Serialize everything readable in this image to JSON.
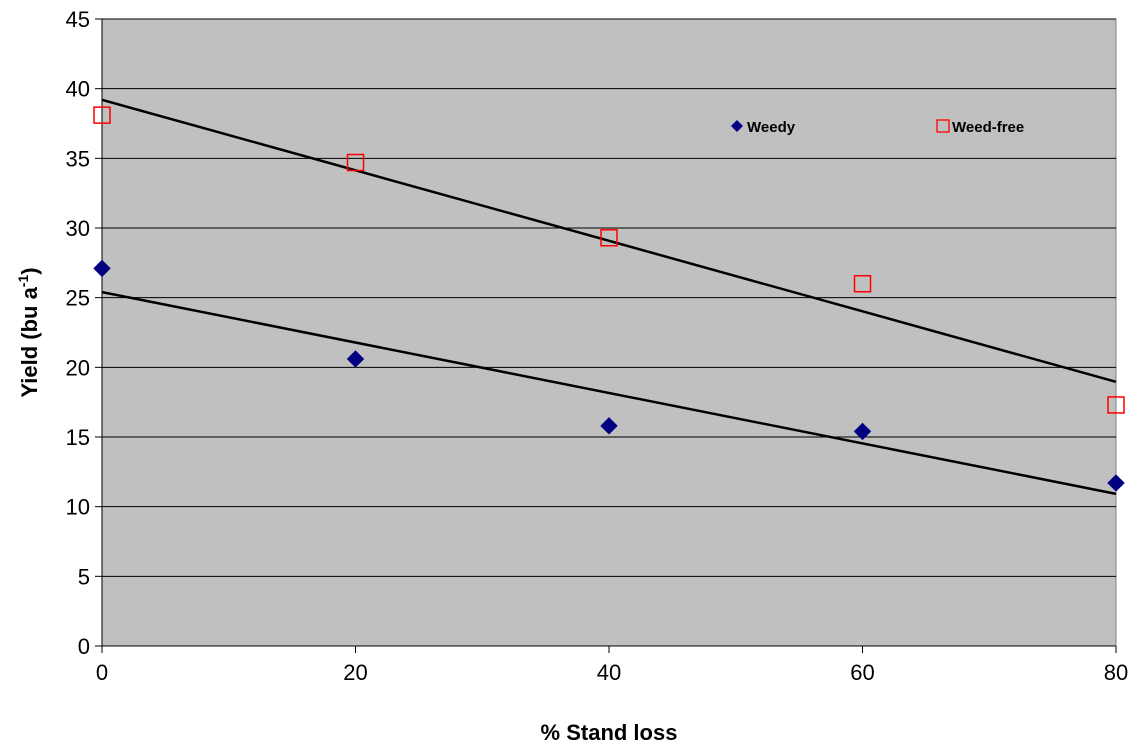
{
  "chart_data": {
    "type": "scatter",
    "xlabel": "% Stand loss",
    "ylabel_main": "Yield (bu a",
    "ylabel_sup": "-1",
    "ylabel_close": ")",
    "xlim": [
      0,
      80
    ],
    "ylim": [
      0,
      45
    ],
    "x_ticks": [
      0,
      20,
      40,
      60,
      80
    ],
    "y_ticks": [
      0,
      5,
      10,
      15,
      20,
      25,
      30,
      35,
      40,
      45
    ],
    "grid": true,
    "plot_background": "#c0c0c0",
    "legend_position": "top-right",
    "series": [
      {
        "name": "Weedy",
        "marker": "diamond",
        "color": "#000080",
        "x": [
          0,
          20,
          40,
          60,
          80
        ],
        "y": [
          27.1,
          20.6,
          15.8,
          15.4,
          11.7
        ],
        "trendline": {
          "intercept": 25.4,
          "slope": -0.181
        }
      },
      {
        "name": "Weed-free",
        "marker": "square-open",
        "color": "#ff0000",
        "x": [
          0,
          20,
          40,
          60,
          80
        ],
        "y": [
          38.1,
          34.7,
          29.3,
          26.0,
          17.3
        ],
        "trendline": {
          "intercept": 39.2,
          "slope": -0.253
        }
      }
    ]
  }
}
